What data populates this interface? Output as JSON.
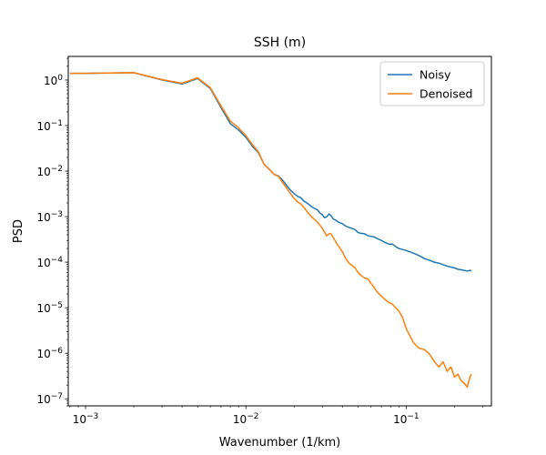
{
  "chart_data": {
    "type": "line",
    "title": "SSH (m)",
    "xlabel": "Wavenumber (1/km)",
    "ylabel": "PSD",
    "xscale": "log",
    "yscale": "log",
    "xlim": [
      0.00078,
      0.34
    ],
    "ylim": [
      7e-08,
      3.3
    ],
    "grid": false,
    "legend_position": "top-right",
    "x_ticks": [
      {
        "value": 0.001,
        "base": "10",
        "exp": "−3"
      },
      {
        "value": 0.01,
        "base": "10",
        "exp": "−2"
      },
      {
        "value": 0.1,
        "base": "10",
        "exp": "−1"
      }
    ],
    "y_ticks": [
      {
        "value": 1e-07,
        "base": "10",
        "exp": "−7"
      },
      {
        "value": 1e-06,
        "base": "10",
        "exp": "−6"
      },
      {
        "value": 1e-05,
        "base": "10",
        "exp": "−5"
      },
      {
        "value": 0.0001,
        "base": "10",
        "exp": "−4"
      },
      {
        "value": 0.001,
        "base": "10",
        "exp": "−3"
      },
      {
        "value": 0.01,
        "base": "10",
        "exp": "−2"
      },
      {
        "value": 0.1,
        "base": "10",
        "exp": "−1"
      },
      {
        "value": 1,
        "base": "10",
        "exp": "0"
      }
    ],
    "series": [
      {
        "name": "Noisy",
        "color": "#1f77b4",
        "points": [
          [
            0.0008,
            1.4
          ],
          [
            0.001,
            1.4
          ],
          [
            0.002,
            1.45
          ],
          [
            0.003,
            1.0
          ],
          [
            0.004,
            0.82
          ],
          [
            0.005,
            1.08
          ],
          [
            0.006,
            0.65
          ],
          [
            0.007,
            0.25
          ],
          [
            0.008,
            0.11
          ],
          [
            0.009,
            0.08
          ],
          [
            0.01,
            0.055
          ],
          [
            0.011,
            0.035
          ],
          [
            0.012,
            0.025
          ],
          [
            0.013,
            0.014
          ],
          [
            0.014,
            0.011
          ],
          [
            0.015,
            0.0085
          ],
          [
            0.016,
            0.0078
          ],
          [
            0.017,
            0.0062
          ],
          [
            0.018,
            0.0048
          ],
          [
            0.019,
            0.0038
          ],
          [
            0.02,
            0.0032
          ],
          [
            0.021,
            0.0028
          ],
          [
            0.022,
            0.0026
          ],
          [
            0.023,
            0.0022
          ],
          [
            0.024,
            0.002
          ],
          [
            0.025,
            0.0018
          ],
          [
            0.026,
            0.0016
          ],
          [
            0.027,
            0.0015
          ],
          [
            0.028,
            0.0014
          ],
          [
            0.029,
            0.0012
          ],
          [
            0.03,
            0.0011
          ],
          [
            0.031,
            0.00095
          ],
          [
            0.032,
            0.001
          ],
          [
            0.033,
            0.00115
          ],
          [
            0.034,
            0.00105
          ],
          [
            0.035,
            0.0009
          ],
          [
            0.036,
            0.00085
          ],
          [
            0.038,
            0.00075
          ],
          [
            0.04,
            0.0007
          ],
          [
            0.042,
            0.00062
          ],
          [
            0.044,
            0.00058
          ],
          [
            0.046,
            0.00055
          ],
          [
            0.048,
            0.00052
          ],
          [
            0.05,
            0.00045
          ],
          [
            0.052,
            0.00043
          ],
          [
            0.055,
            0.00042
          ],
          [
            0.058,
            0.00038
          ],
          [
            0.06,
            0.00037
          ],
          [
            0.063,
            0.00036
          ],
          [
            0.066,
            0.00033
          ],
          [
            0.07,
            0.0003
          ],
          [
            0.074,
            0.00027
          ],
          [
            0.078,
            0.00025
          ],
          [
            0.082,
            0.00025
          ],
          [
            0.086,
            0.00022
          ],
          [
            0.09,
            0.0002
          ],
          [
            0.095,
            0.00019
          ],
          [
            0.1,
            0.00018
          ],
          [
            0.11,
            0.00016
          ],
          [
            0.12,
            0.00014
          ],
          [
            0.13,
            0.00012
          ],
          [
            0.14,
            0.00011
          ],
          [
            0.15,
            0.0001
          ],
          [
            0.16,
            9.5e-05
          ],
          [
            0.17,
            8.8e-05
          ],
          [
            0.18,
            8.2e-05
          ],
          [
            0.19,
            7.8e-05
          ],
          [
            0.2,
            7.5e-05
          ],
          [
            0.21,
            7e-05
          ],
          [
            0.22,
            6.8e-05
          ],
          [
            0.23,
            6.6e-05
          ],
          [
            0.24,
            6.4e-05
          ],
          [
            0.25,
            6.6e-05
          ],
          [
            0.255,
            6.5e-05
          ]
        ]
      },
      {
        "name": "Denoised",
        "color": "#ff7f0e",
        "points": [
          [
            0.0008,
            1.4
          ],
          [
            0.001,
            1.4
          ],
          [
            0.002,
            1.45
          ],
          [
            0.003,
            1.02
          ],
          [
            0.004,
            0.85
          ],
          [
            0.005,
            1.12
          ],
          [
            0.006,
            0.68
          ],
          [
            0.007,
            0.27
          ],
          [
            0.008,
            0.125
          ],
          [
            0.009,
            0.09
          ],
          [
            0.01,
            0.06
          ],
          [
            0.011,
            0.038
          ],
          [
            0.012,
            0.026
          ],
          [
            0.013,
            0.014
          ],
          [
            0.014,
            0.011
          ],
          [
            0.015,
            0.0085
          ],
          [
            0.016,
            0.0076
          ],
          [
            0.017,
            0.0055
          ],
          [
            0.018,
            0.0042
          ],
          [
            0.019,
            0.0032
          ],
          [
            0.02,
            0.0025
          ],
          [
            0.021,
            0.0021
          ],
          [
            0.022,
            0.0019
          ],
          [
            0.023,
            0.0016
          ],
          [
            0.024,
            0.0013
          ],
          [
            0.025,
            0.0011
          ],
          [
            0.026,
            0.00095
          ],
          [
            0.027,
            0.00085
          ],
          [
            0.028,
            0.00075
          ],
          [
            0.029,
            0.00065
          ],
          [
            0.03,
            0.00055
          ],
          [
            0.031,
            0.00045
          ],
          [
            0.032,
            0.00038
          ],
          [
            0.033,
            0.00042
          ],
          [
            0.034,
            0.00042
          ],
          [
            0.035,
            0.00035
          ],
          [
            0.036,
            0.0003
          ],
          [
            0.037,
            0.00025
          ],
          [
            0.038,
            0.00022
          ],
          [
            0.04,
            0.00017
          ],
          [
            0.042,
            0.00012
          ],
          [
            0.044,
            9.5e-05
          ],
          [
            0.046,
            8.5e-05
          ],
          [
            0.048,
            7.5e-05
          ],
          [
            0.05,
            6e-05
          ],
          [
            0.052,
            5.2e-05
          ],
          [
            0.055,
            4.5e-05
          ],
          [
            0.058,
            4.2e-05
          ],
          [
            0.06,
            3.5e-05
          ],
          [
            0.063,
            2.8e-05
          ],
          [
            0.066,
            2.2e-05
          ],
          [
            0.07,
            1.8e-05
          ],
          [
            0.074,
            1.5e-05
          ],
          [
            0.078,
            1.3e-05
          ],
          [
            0.082,
            1.2e-05
          ],
          [
            0.086,
            1e-05
          ],
          [
            0.09,
            8.5e-06
          ],
          [
            0.095,
            6e-06
          ],
          [
            0.1,
            3.5e-06
          ],
          [
            0.105,
            2.5e-06
          ],
          [
            0.11,
            1.8e-06
          ],
          [
            0.115,
            1.5e-06
          ],
          [
            0.12,
            1.3e-06
          ],
          [
            0.13,
            1.2e-06
          ],
          [
            0.14,
            9.5e-07
          ],
          [
            0.15,
            6.5e-07
          ],
          [
            0.16,
            5e-07
          ],
          [
            0.17,
            6.5e-07
          ],
          [
            0.18,
            4e-07
          ],
          [
            0.19,
            5e-07
          ],
          [
            0.2,
            3e-07
          ],
          [
            0.21,
            3.5e-07
          ],
          [
            0.22,
            2.5e-07
          ],
          [
            0.23,
            2.2e-07
          ],
          [
            0.24,
            1.8e-07
          ],
          [
            0.25,
            3e-07
          ],
          [
            0.255,
            3.5e-07
          ]
        ]
      }
    ]
  }
}
